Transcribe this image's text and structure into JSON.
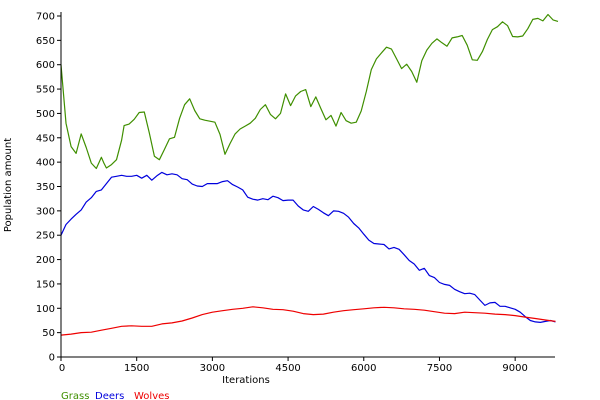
{
  "chart_data": {
    "type": "line",
    "title": "",
    "xlabel": "Iterations",
    "ylabel": "Population amount",
    "xlim": [
      0,
      9750
    ],
    "ylim": [
      0,
      700
    ],
    "x_ticks": [
      0,
      1500,
      3000,
      4500,
      6000,
      7500,
      9000
    ],
    "x_tick_labels": [
      "0",
      "1500",
      "3000",
      "4500",
      "6000",
      "7500",
      "9000"
    ],
    "y_ticks": [
      0,
      50,
      100,
      150,
      200,
      250,
      300,
      350,
      400,
      450,
      500,
      550,
      600,
      650,
      700
    ],
    "y_tick_labels": [
      "0",
      "50",
      "100",
      "150",
      "200",
      "250",
      "300",
      "350",
      "400",
      "450",
      "500",
      "550",
      "600",
      "650",
      "700"
    ],
    "grid": false,
    "legend_position": "bottom-left",
    "series": [
      {
        "name": "Grass",
        "color": "#3f8f00",
        "points": [
          [
            0,
            600
          ],
          [
            100,
            480
          ],
          [
            200,
            432
          ],
          [
            300,
            418
          ],
          [
            400,
            458
          ],
          [
            500,
            430
          ],
          [
            600,
            398
          ],
          [
            700,
            387
          ],
          [
            800,
            410
          ],
          [
            850,
            398
          ],
          [
            900,
            388
          ],
          [
            1000,
            395
          ],
          [
            1100,
            405
          ],
          [
            1200,
            445
          ],
          [
            1250,
            475
          ],
          [
            1350,
            478
          ],
          [
            1450,
            488
          ],
          [
            1550,
            502
          ],
          [
            1650,
            503
          ],
          [
            1750,
            460
          ],
          [
            1850,
            412
          ],
          [
            1950,
            405
          ],
          [
            2050,
            426
          ],
          [
            2150,
            448
          ],
          [
            2250,
            451
          ],
          [
            2350,
            490
          ],
          [
            2450,
            518
          ],
          [
            2550,
            530
          ],
          [
            2650,
            506
          ],
          [
            2750,
            489
          ],
          [
            2850,
            486
          ],
          [
            2950,
            484
          ],
          [
            3050,
            482
          ],
          [
            3150,
            457
          ],
          [
            3250,
            416
          ],
          [
            3350,
            438
          ],
          [
            3450,
            458
          ],
          [
            3550,
            468
          ],
          [
            3650,
            474
          ],
          [
            3750,
            480
          ],
          [
            3850,
            490
          ],
          [
            3950,
            508
          ],
          [
            4050,
            518
          ],
          [
            4150,
            498
          ],
          [
            4250,
            489
          ],
          [
            4350,
            500
          ],
          [
            4450,
            540
          ],
          [
            4550,
            516
          ],
          [
            4650,
            536
          ],
          [
            4750,
            545
          ],
          [
            4850,
            549
          ],
          [
            4950,
            514
          ],
          [
            5050,
            534
          ],
          [
            5150,
            510
          ],
          [
            5250,
            487
          ],
          [
            5350,
            496
          ],
          [
            5450,
            474
          ],
          [
            5550,
            502
          ],
          [
            5650,
            485
          ],
          [
            5750,
            480
          ],
          [
            5850,
            482
          ],
          [
            5950,
            505
          ],
          [
            6050,
            545
          ],
          [
            6150,
            590
          ],
          [
            6250,
            612
          ],
          [
            6350,
            624
          ],
          [
            6450,
            636
          ],
          [
            6550,
            632
          ],
          [
            6650,
            612
          ],
          [
            6750,
            592
          ],
          [
            6850,
            601
          ],
          [
            6950,
            586
          ],
          [
            7050,
            564
          ],
          [
            7150,
            608
          ],
          [
            7250,
            630
          ],
          [
            7350,
            644
          ],
          [
            7450,
            653
          ],
          [
            7550,
            645
          ],
          [
            7650,
            638
          ],
          [
            7750,
            655
          ],
          [
            7850,
            657
          ],
          [
            7950,
            660
          ],
          [
            8050,
            640
          ],
          [
            8150,
            610
          ],
          [
            8250,
            609
          ],
          [
            8350,
            627
          ],
          [
            8450,
            652
          ],
          [
            8550,
            672
          ],
          [
            8650,
            678
          ],
          [
            8750,
            688
          ],
          [
            8850,
            680
          ],
          [
            8950,
            658
          ],
          [
            9050,
            657
          ],
          [
            9150,
            659
          ],
          [
            9250,
            674
          ],
          [
            9350,
            693
          ],
          [
            9450,
            695
          ],
          [
            9550,
            690
          ],
          [
            9650,
            703
          ],
          [
            9750,
            692
          ],
          [
            9850,
            689
          ]
        ]
      },
      {
        "name": "Deers",
        "color": "#0000dd",
        "points": [
          [
            0,
            250
          ],
          [
            100,
            272
          ],
          [
            200,
            283
          ],
          [
            300,
            293
          ],
          [
            400,
            302
          ],
          [
            500,
            318
          ],
          [
            600,
            327
          ],
          [
            700,
            340
          ],
          [
            800,
            343
          ],
          [
            900,
            356
          ],
          [
            1000,
            369
          ],
          [
            1100,
            371
          ],
          [
            1200,
            373
          ],
          [
            1300,
            371
          ],
          [
            1400,
            371
          ],
          [
            1500,
            373
          ],
          [
            1600,
            367
          ],
          [
            1700,
            373
          ],
          [
            1800,
            363
          ],
          [
            1900,
            372
          ],
          [
            2000,
            379
          ],
          [
            2100,
            374
          ],
          [
            2200,
            376
          ],
          [
            2300,
            374
          ],
          [
            2400,
            366
          ],
          [
            2500,
            364
          ],
          [
            2600,
            355
          ],
          [
            2700,
            351
          ],
          [
            2800,
            350
          ],
          [
            2900,
            356
          ],
          [
            3000,
            356
          ],
          [
            3100,
            356
          ],
          [
            3200,
            360
          ],
          [
            3300,
            362
          ],
          [
            3400,
            354
          ],
          [
            3500,
            349
          ],
          [
            3600,
            343
          ],
          [
            3700,
            328
          ],
          [
            3800,
            324
          ],
          [
            3900,
            322
          ],
          [
            4000,
            325
          ],
          [
            4100,
            323
          ],
          [
            4200,
            330
          ],
          [
            4300,
            327
          ],
          [
            4400,
            321
          ],
          [
            4500,
            322
          ],
          [
            4600,
            322
          ],
          [
            4700,
            310
          ],
          [
            4800,
            302
          ],
          [
            4900,
            299
          ],
          [
            5000,
            309
          ],
          [
            5100,
            303
          ],
          [
            5200,
            296
          ],
          [
            5300,
            290
          ],
          [
            5400,
            300
          ],
          [
            5500,
            299
          ],
          [
            5600,
            295
          ],
          [
            5700,
            287
          ],
          [
            5800,
            274
          ],
          [
            5900,
            265
          ],
          [
            6000,
            252
          ],
          [
            6100,
            240
          ],
          [
            6200,
            233
          ],
          [
            6300,
            232
          ],
          [
            6400,
            231
          ],
          [
            6500,
            222
          ],
          [
            6600,
            225
          ],
          [
            6700,
            221
          ],
          [
            6800,
            210
          ],
          [
            6900,
            198
          ],
          [
            7000,
            191
          ],
          [
            7100,
            178
          ],
          [
            7200,
            182
          ],
          [
            7300,
            167
          ],
          [
            7400,
            163
          ],
          [
            7500,
            153
          ],
          [
            7600,
            149
          ],
          [
            7700,
            147
          ],
          [
            7800,
            139
          ],
          [
            7900,
            134
          ],
          [
            8000,
            130
          ],
          [
            8100,
            131
          ],
          [
            8200,
            128
          ],
          [
            8300,
            117
          ],
          [
            8400,
            106
          ],
          [
            8500,
            111
          ],
          [
            8600,
            112
          ],
          [
            8700,
            104
          ],
          [
            8800,
            104
          ],
          [
            8900,
            101
          ],
          [
            9000,
            98
          ],
          [
            9100,
            92
          ],
          [
            9200,
            83
          ],
          [
            9300,
            75
          ],
          [
            9400,
            72
          ],
          [
            9500,
            71
          ],
          [
            9600,
            73
          ],
          [
            9700,
            75
          ],
          [
            9800,
            72
          ]
        ]
      },
      {
        "name": "Wolves",
        "color": "#ee0000",
        "points": [
          [
            0,
            45
          ],
          [
            200,
            47
          ],
          [
            400,
            50
          ],
          [
            600,
            51
          ],
          [
            800,
            55
          ],
          [
            1000,
            59
          ],
          [
            1200,
            63
          ],
          [
            1400,
            64
          ],
          [
            1600,
            63
          ],
          [
            1800,
            63
          ],
          [
            2000,
            68
          ],
          [
            2200,
            70
          ],
          [
            2400,
            74
          ],
          [
            2600,
            80
          ],
          [
            2800,
            87
          ],
          [
            3000,
            92
          ],
          [
            3200,
            95
          ],
          [
            3400,
            98
          ],
          [
            3600,
            100
          ],
          [
            3800,
            103
          ],
          [
            4000,
            101
          ],
          [
            4200,
            98
          ],
          [
            4400,
            97
          ],
          [
            4600,
            94
          ],
          [
            4800,
            89
          ],
          [
            5000,
            87
          ],
          [
            5200,
            88
          ],
          [
            5400,
            92
          ],
          [
            5600,
            95
          ],
          [
            5800,
            97
          ],
          [
            6000,
            99
          ],
          [
            6200,
            101
          ],
          [
            6400,
            102
          ],
          [
            6600,
            101
          ],
          [
            6800,
            99
          ],
          [
            7000,
            98
          ],
          [
            7200,
            96
          ],
          [
            7400,
            93
          ],
          [
            7600,
            90
          ],
          [
            7800,
            89
          ],
          [
            8000,
            92
          ],
          [
            8200,
            91
          ],
          [
            8400,
            90
          ],
          [
            8600,
            88
          ],
          [
            8800,
            87
          ],
          [
            9000,
            85
          ],
          [
            9200,
            82
          ],
          [
            9400,
            79
          ],
          [
            9600,
            76
          ],
          [
            9800,
            73
          ]
        ]
      }
    ]
  }
}
